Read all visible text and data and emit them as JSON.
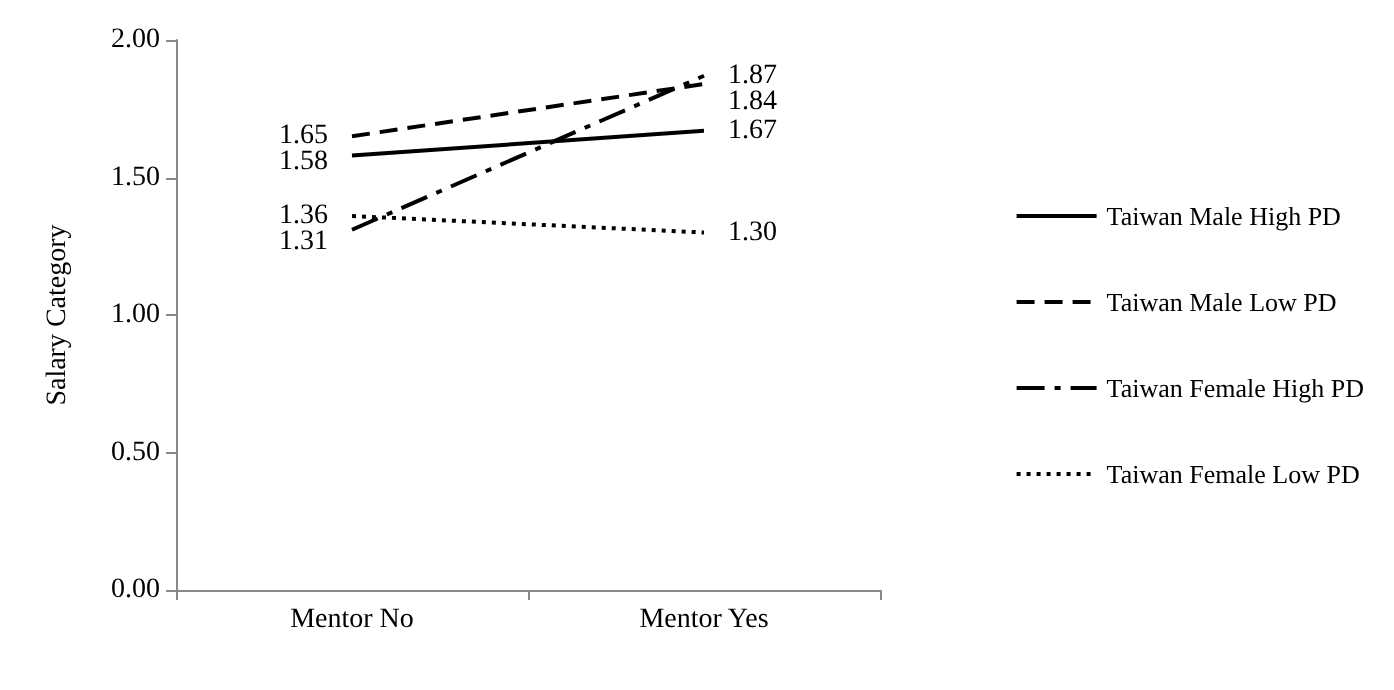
{
  "chart_data": {
    "type": "line",
    "ylabel": "Salary Category",
    "categories": [
      "Mentor No",
      "Mentor Yes"
    ],
    "series": [
      {
        "name": "Taiwan Male High PD",
        "color": "#000000",
        "line_style": "solid",
        "values": [
          1.58,
          1.67
        ],
        "value_labels": [
          "1.58",
          "1.67"
        ]
      },
      {
        "name": "Taiwan Male Low PD",
        "color": "#000000",
        "line_style": "dashed",
        "values": [
          1.65,
          1.84
        ],
        "value_labels": [
          "1.65",
          "1.84"
        ]
      },
      {
        "name": "Taiwan Female High PD",
        "color": "#000000",
        "line_style": "dashdot",
        "values": [
          1.31,
          1.87
        ],
        "value_labels": [
          "1.31",
          "1.87"
        ]
      },
      {
        "name": "Taiwan Female Low PD",
        "color": "#000000",
        "line_style": "dotted",
        "values": [
          1.36,
          1.3
        ],
        "value_labels": [
          "1.36",
          "1.30"
        ]
      }
    ],
    "ylim": [
      0,
      2
    ],
    "yticks": [
      {
        "value": 0,
        "label": "0.00"
      },
      {
        "value": 0.5,
        "label": "0.50"
      },
      {
        "value": 1,
        "label": "1.00"
      },
      {
        "value": 1.5,
        "label": "1.50"
      },
      {
        "value": 2,
        "label": "2.00"
      }
    ],
    "grid": false,
    "legend": "right",
    "marker": "none"
  }
}
